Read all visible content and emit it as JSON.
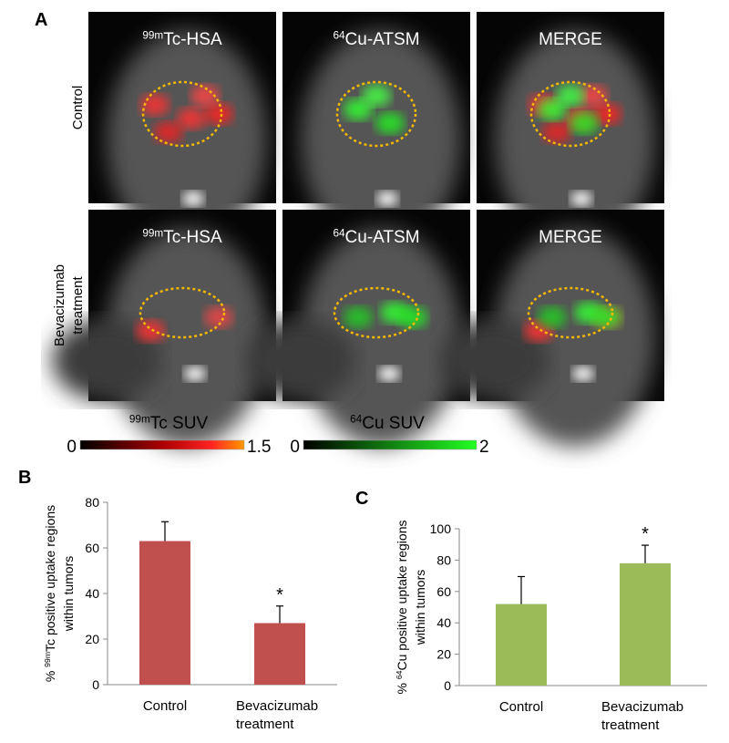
{
  "panel_a": {
    "label": "A",
    "columns": [
      {
        "sup": "99m",
        "text": "Tc-HSA"
      },
      {
        "sup": "64",
        "text": "Cu-ATSM"
      },
      {
        "sup": "",
        "text": "MERGE"
      }
    ],
    "rows": [
      [
        "Control"
      ],
      [
        "Bevacizumab",
        "treatment"
      ]
    ],
    "colorbars": [
      {
        "sup": "99m",
        "label": "Tc SUV",
        "min": 0,
        "max": 1.5
      },
      {
        "sup": "64",
        "label": "Cu SUV",
        "min": 0,
        "max": 2
      }
    ]
  },
  "chart_data": [
    {
      "type": "bar",
      "panel": "B",
      "categories": [
        [
          "Control"
        ],
        [
          "Bevacizumab",
          "treatment"
        ]
      ],
      "values": [
        63,
        27
      ],
      "errors": [
        8.5,
        7.5
      ],
      "significance": [
        null,
        "*"
      ],
      "color": "#c0504d",
      "y_label": {
        "prefix": "% ",
        "sup": "99m",
        "text": "Tc positive uptake regions",
        "line2": "within tumors"
      },
      "ylim": [
        0,
        80
      ],
      "yticks": [
        0,
        20,
        40,
        60,
        80
      ]
    },
    {
      "type": "bar",
      "panel": "C",
      "categories": [
        [
          "Control"
        ],
        [
          "Bevacizumab",
          "treatment"
        ]
      ],
      "values": [
        52,
        78
      ],
      "errors": [
        17.5,
        11.5
      ],
      "significance": [
        null,
        "*"
      ],
      "color": "#9bbb59",
      "y_label": {
        "prefix": "% ",
        "sup": "64",
        "text": "Cu positive uptake regions",
        "line2": "within tumors"
      },
      "ylim": [
        0,
        100
      ],
      "yticks": [
        0,
        20,
        40,
        60,
        80,
        100
      ]
    }
  ]
}
